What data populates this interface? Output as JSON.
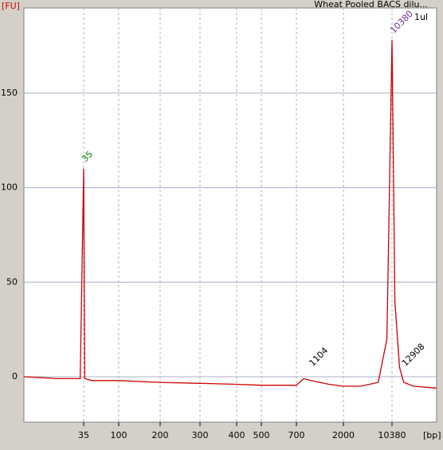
{
  "chart_data": {
    "type": "line",
    "title": "Wheat Pooled BACS dilu...",
    "subtitle": "1ul",
    "y_label": "[FU]",
    "x_label": "[bp]",
    "xlim": [
      0,
      20000
    ],
    "xticks": [
      35,
      100,
      200,
      300,
      400,
      500,
      700,
      2000,
      10380
    ],
    "ylim": [
      -24,
      195
    ],
    "yticks": [
      0,
      50,
      100,
      150
    ],
    "grid": true,
    "series": [
      {
        "name": "Wheat Pooled BACS dilu...",
        "color": "#cc0000",
        "x": [
          0,
          20,
          33,
          35,
          37,
          50,
          100,
          200,
          300,
          400,
          500,
          700,
          900,
          1104,
          1600,
          2000,
          5000,
          8000,
          9500,
          10380,
          11000,
          12000,
          12908,
          15000,
          20000
        ],
        "values": [
          0,
          -1,
          -1,
          110,
          -1,
          -2,
          -2,
          -3,
          -3.5,
          -4,
          -4.5,
          -4.5,
          -1,
          -2,
          -4,
          -5,
          -5,
          -3,
          20,
          178,
          40,
          5,
          -3,
          -5,
          -6
        ]
      }
    ],
    "annotations": [
      {
        "text": "35",
        "x": 35,
        "y": 110,
        "color": "#008000"
      },
      {
        "text": "10380",
        "x": 10380,
        "y": 178,
        "color": "#7030a0"
      },
      {
        "text": "1104",
        "x": 1104,
        "y": 2,
        "color": "#000000"
      },
      {
        "text": "12908",
        "x": 12908,
        "y": 2,
        "color": "#000000"
      }
    ]
  }
}
